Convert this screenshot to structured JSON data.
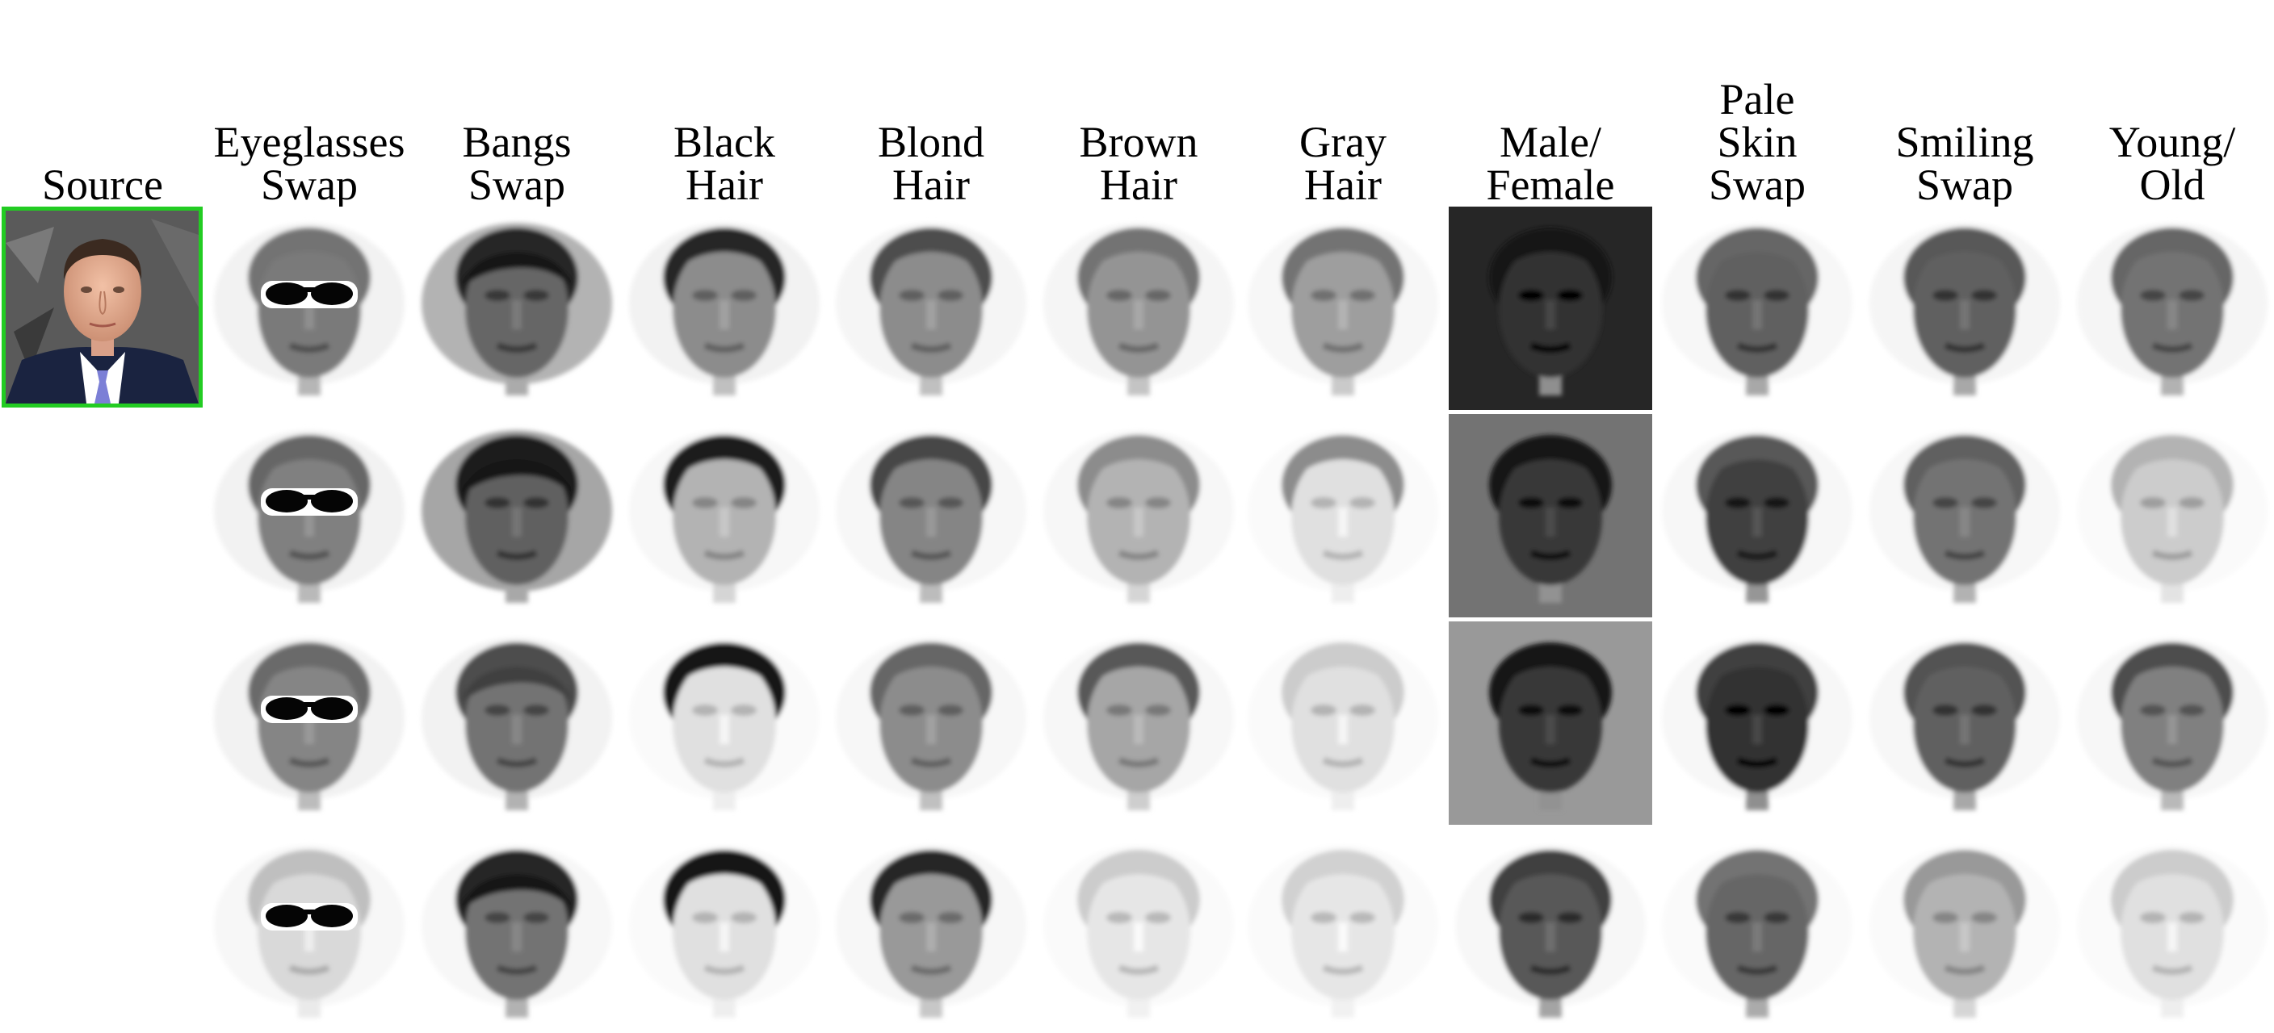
{
  "headers": [
    {
      "lines": [
        "Source"
      ]
    },
    {
      "lines": [
        "Eyeglasses",
        "Swap"
      ]
    },
    {
      "lines": [
        "Bangs",
        "Swap"
      ]
    },
    {
      "lines": [
        "Black",
        "Hair"
      ]
    },
    {
      "lines": [
        "Blond",
        "Hair"
      ]
    },
    {
      "lines": [
        "Brown",
        "Hair"
      ]
    },
    {
      "lines": [
        "Gray",
        "Hair"
      ]
    },
    {
      "lines": [
        "Male/",
        "Female"
      ]
    },
    {
      "lines": [
        "Pale",
        "Skin",
        "Swap"
      ]
    },
    {
      "lines": [
        "Smiling",
        "Swap"
      ]
    },
    {
      "lines": [
        "Young/",
        "Old"
      ]
    }
  ],
  "colors": {
    "source_border": "#22cc22",
    "background": "#ffffff"
  },
  "grid": {
    "rows": 4,
    "columns": [
      {
        "attribute": "eyeglasses",
        "cells": [
          {
            "face": 0.52,
            "hair": 0.55,
            "bg": 0.05,
            "glasses": true,
            "glasses_dark": true
          },
          {
            "face": 0.5,
            "hair": 0.6,
            "bg": 0.05,
            "glasses": true,
            "glasses_dark": true
          },
          {
            "face": 0.48,
            "hair": 0.58,
            "bg": 0.05,
            "glasses": true,
            "glasses_dark": true
          },
          {
            "face": 0.15,
            "hair": 0.25,
            "bg": 0.03,
            "glasses": true,
            "glasses_dark": true
          }
        ]
      },
      {
        "attribute": "bangs",
        "cells": [
          {
            "face": 0.6,
            "hair": 0.85,
            "bg": 0.3,
            "bangs": true
          },
          {
            "face": 0.62,
            "hair": 0.88,
            "bg": 0.35,
            "bangs": true
          },
          {
            "face": 0.55,
            "hair": 0.7,
            "bg": 0.05,
            "bangs": true
          },
          {
            "face": 0.55,
            "hair": 0.85,
            "bg": 0.03,
            "bangs": true
          }
        ]
      },
      {
        "attribute": "black_hair",
        "cells": [
          {
            "face": 0.45,
            "hair": 0.85,
            "bg": 0.05
          },
          {
            "face": 0.3,
            "hair": 0.88,
            "bg": 0.03
          },
          {
            "face": 0.12,
            "hair": 0.92,
            "bg": 0.02
          },
          {
            "face": 0.12,
            "hair": 0.92,
            "bg": 0.02
          }
        ]
      },
      {
        "attribute": "blond_hair",
        "cells": [
          {
            "face": 0.45,
            "hair": 0.7,
            "bg": 0.04
          },
          {
            "face": 0.48,
            "hair": 0.72,
            "bg": 0.03
          },
          {
            "face": 0.45,
            "hair": 0.6,
            "bg": 0.03
          },
          {
            "face": 0.4,
            "hair": 0.85,
            "bg": 0.03
          }
        ]
      },
      {
        "attribute": "brown_hair",
        "cells": [
          {
            "face": 0.42,
            "hair": 0.55,
            "bg": 0.04
          },
          {
            "face": 0.3,
            "hair": 0.45,
            "bg": 0.03
          },
          {
            "face": 0.35,
            "hair": 0.65,
            "bg": 0.03
          },
          {
            "face": 0.1,
            "hair": 0.2,
            "bg": 0.02
          }
        ]
      },
      {
        "attribute": "gray_hair",
        "cells": [
          {
            "face": 0.38,
            "hair": 0.55,
            "bg": 0.03
          },
          {
            "face": 0.12,
            "hair": 0.45,
            "bg": 0.02
          },
          {
            "face": 0.12,
            "hair": 0.2,
            "bg": 0.02
          },
          {
            "face": 0.1,
            "hair": 0.18,
            "bg": 0.02
          }
        ]
      },
      {
        "attribute": "male_female",
        "cells": [
          {
            "face": 0.8,
            "hair": 0.92,
            "bg": 0.85,
            "boxed": true
          },
          {
            "face": 0.78,
            "hair": 0.92,
            "bg": 0.55,
            "boxed": true
          },
          {
            "face": 0.78,
            "hair": 0.92,
            "bg": 0.4,
            "boxed": true
          },
          {
            "face": 0.65,
            "hair": 0.75,
            "bg": 0.03
          }
        ]
      },
      {
        "attribute": "pale_skin",
        "cells": [
          {
            "face": 0.62,
            "hair": 0.6,
            "bg": 0.03
          },
          {
            "face": 0.75,
            "hair": 0.65,
            "bg": 0.03
          },
          {
            "face": 0.8,
            "hair": 0.75,
            "bg": 0.03
          },
          {
            "face": 0.6,
            "hair": 0.55,
            "bg": 0.02
          }
        ]
      },
      {
        "attribute": "smiling",
        "cells": [
          {
            "face": 0.62,
            "hair": 0.65,
            "bg": 0.04
          },
          {
            "face": 0.55,
            "hair": 0.62,
            "bg": 0.03
          },
          {
            "face": 0.62,
            "hair": 0.68,
            "bg": 0.03
          },
          {
            "face": 0.3,
            "hair": 0.4,
            "bg": 0.02
          }
        ]
      },
      {
        "attribute": "young_old",
        "cells": [
          {
            "face": 0.55,
            "hair": 0.6,
            "bg": 0.04
          },
          {
            "face": 0.2,
            "hair": 0.3,
            "bg": 0.02
          },
          {
            "face": 0.5,
            "hair": 0.7,
            "bg": 0.03
          },
          {
            "face": 0.12,
            "hair": 0.2,
            "bg": 0.02
          }
        ]
      }
    ]
  }
}
